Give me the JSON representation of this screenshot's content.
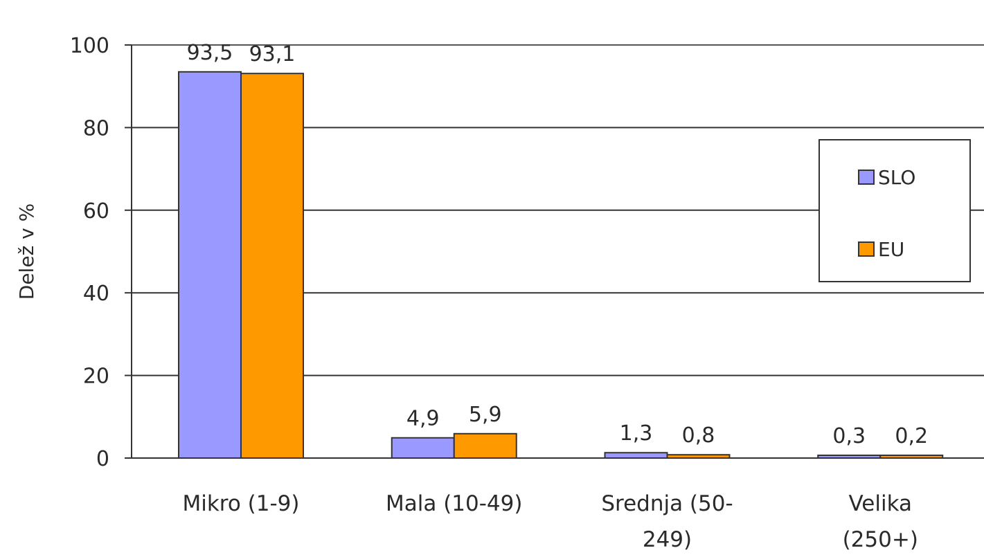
{
  "chart_data": {
    "type": "bar",
    "title": "",
    "xlabel": "",
    "ylabel": "Delež v %",
    "ylim": [
      0,
      100
    ],
    "yticks": [
      "0",
      "20",
      "40",
      "60",
      "80",
      "100"
    ],
    "categories": [
      [
        "Mikro (1-9)"
      ],
      [
        "Mala (10-49)"
      ],
      [
        "Srednja (50-",
        "249)"
      ],
      [
        "Velika",
        "(250+)"
      ]
    ],
    "series": [
      {
        "name": "SLO",
        "values": [
          93.5,
          4.9,
          1.3,
          0.3
        ],
        "labels": [
          "93,5",
          "4,9",
          "1,3",
          "0,3"
        ],
        "color": "#9999ff"
      },
      {
        "name": "EU",
        "values": [
          93.1,
          5.9,
          0.8,
          0.2
        ],
        "labels": [
          "93,1",
          "5,9",
          "0,8",
          "0,2"
        ],
        "color": "#ff9900"
      }
    ],
    "grid": true,
    "legend_position": "right"
  }
}
